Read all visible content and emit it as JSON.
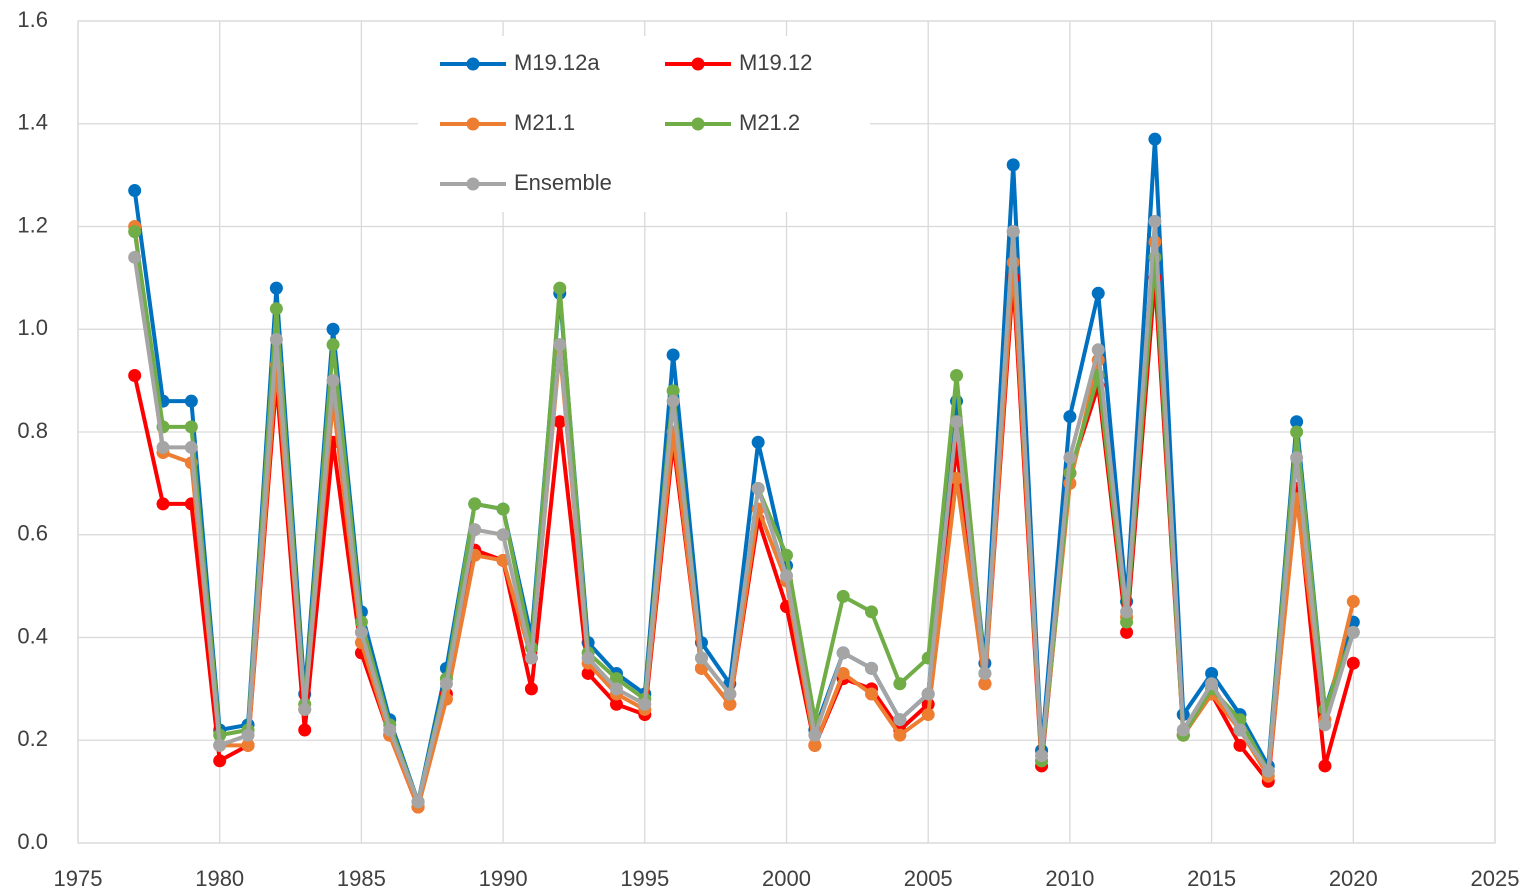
{
  "chart_data": {
    "type": "line",
    "x": [
      1977,
      1978,
      1979,
      1980,
      1981,
      1982,
      1983,
      1984,
      1985,
      1986,
      1987,
      1988,
      1989,
      1990,
      1991,
      1992,
      1993,
      1994,
      1995,
      1996,
      1997,
      1998,
      1999,
      2000,
      2001,
      2002,
      2003,
      2004,
      2005,
      2006,
      2007,
      2008,
      2009,
      2010,
      2011,
      2012,
      2013,
      2014,
      2015,
      2016,
      2017,
      2018,
      2019,
      2020
    ],
    "series": [
      {
        "name": "M19.12a",
        "color": "#0070c0",
        "values": [
          1.27,
          0.86,
          0.86,
          0.22,
          0.23,
          1.08,
          0.29,
          1.0,
          0.45,
          0.24,
          0.08,
          0.34,
          0.66,
          0.65,
          0.4,
          1.07,
          0.39,
          0.33,
          0.29,
          0.95,
          0.39,
          0.31,
          0.78,
          0.54,
          0.22,
          0.37,
          0.34,
          0.24,
          0.29,
          0.86,
          0.35,
          1.32,
          0.18,
          0.83,
          1.07,
          0.47,
          1.37,
          0.25,
          0.33,
          0.25,
          0.15,
          0.82,
          0.26,
          0.43
        ]
      },
      {
        "name": "M19.12",
        "color": "#ff0000",
        "values": [
          0.91,
          0.66,
          0.66,
          0.16,
          0.19,
          0.9,
          0.22,
          0.78,
          0.37,
          0.21,
          0.07,
          0.29,
          0.57,
          0.55,
          0.3,
          0.82,
          0.33,
          0.27,
          0.25,
          0.78,
          0.34,
          0.27,
          0.63,
          0.46,
          0.19,
          0.32,
          0.3,
          0.22,
          0.27,
          0.77,
          0.31,
          1.1,
          0.15,
          0.72,
          0.89,
          0.41,
          1.1,
          0.21,
          0.29,
          0.19,
          0.12,
          0.69,
          0.15,
          0.35
        ]
      },
      {
        "name": "M21.1",
        "color": "#ed7d31",
        "values": [
          1.2,
          0.76,
          0.74,
          0.19,
          0.19,
          0.93,
          0.26,
          0.86,
          0.39,
          0.21,
          0.07,
          0.28,
          0.56,
          0.55,
          0.36,
          0.96,
          0.35,
          0.29,
          0.26,
          0.8,
          0.34,
          0.27,
          0.65,
          0.51,
          0.19,
          0.33,
          0.29,
          0.21,
          0.25,
          0.71,
          0.31,
          1.13,
          0.16,
          0.7,
          0.94,
          0.44,
          1.17,
          0.21,
          0.29,
          0.22,
          0.13,
          0.67,
          0.24,
          0.47
        ]
      },
      {
        "name": "M21.2",
        "color": "#70ad47",
        "values": [
          1.19,
          0.81,
          0.81,
          0.21,
          0.22,
          1.04,
          0.27,
          0.97,
          0.43,
          0.23,
          0.08,
          0.32,
          0.66,
          0.65,
          0.38,
          1.08,
          0.37,
          0.32,
          0.28,
          0.88,
          0.36,
          0.29,
          0.69,
          0.56,
          0.24,
          0.48,
          0.45,
          0.31,
          0.36,
          0.91,
          0.33,
          1.19,
          0.16,
          0.72,
          0.91,
          0.43,
          1.14,
          0.21,
          0.3,
          0.24,
          0.14,
          0.8,
          0.26,
          0.41
        ]
      },
      {
        "name": "Ensemble",
        "color": "#a5a5a5",
        "values": [
          1.14,
          0.77,
          0.77,
          0.19,
          0.21,
          0.98,
          0.26,
          0.9,
          0.41,
          0.22,
          0.08,
          0.31,
          0.61,
          0.6,
          0.36,
          0.97,
          0.36,
          0.3,
          0.27,
          0.86,
          0.36,
          0.29,
          0.69,
          0.52,
          0.21,
          0.37,
          0.34,
          0.24,
          0.29,
          0.82,
          0.33,
          1.19,
          0.17,
          0.75,
          0.96,
          0.45,
          1.21,
          0.22,
          0.31,
          0.22,
          0.14,
          0.75,
          0.23,
          0.41
        ]
      }
    ],
    "xlim": [
      1975,
      2025
    ],
    "xticks": [
      1975,
      1980,
      1985,
      1990,
      1995,
      2000,
      2005,
      2010,
      2015,
      2020,
      2025
    ],
    "ylim": [
      0,
      1.6
    ],
    "yticks": [
      {
        "value": 0,
        "label": "0.0"
      },
      {
        "value": 0.2,
        "label": "0.2"
      },
      {
        "value": 0.4,
        "label": "0.4"
      },
      {
        "value": 0.6,
        "label": "0.6"
      },
      {
        "value": 0.8,
        "label": "0.8"
      },
      {
        "value": 1.0,
        "label": "1.0"
      },
      {
        "value": 1.2,
        "label": "1.2"
      },
      {
        "value": 1.4,
        "label": "1.4"
      },
      {
        "value": 1.6,
        "label": "1.6"
      }
    ],
    "grid": true,
    "legend_position": "top"
  }
}
